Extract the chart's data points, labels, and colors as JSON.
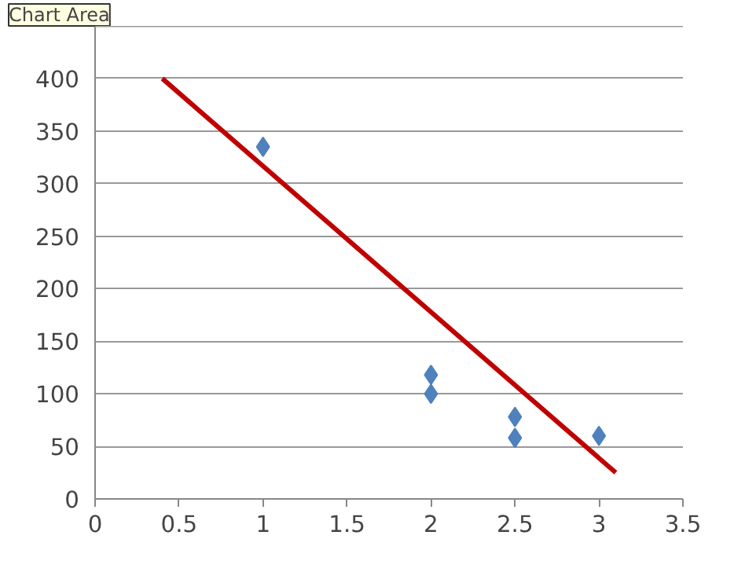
{
  "chart_data": {
    "type": "scatter",
    "marker": "diamond",
    "grid": "y",
    "xlim": [
      0,
      3.5
    ],
    "xticks": [
      0,
      0.5,
      1,
      1.5,
      2,
      2.5,
      3,
      3.5
    ],
    "ylim": [
      0,
      450
    ],
    "yticks": [
      0,
      50,
      100,
      150,
      200,
      250,
      300,
      350,
      400,
      {
        "value": 450,
        "label": null
      }
    ],
    "annotations": [
      "Chart Area"
    ],
    "series": [
      {
        "color": "#4f81bd",
        "x": [
          1,
          2,
          2,
          2.5,
          2.5,
          3
        ],
        "values": [
          335,
          118,
          100,
          78,
          58,
          60
        ]
      },
      {
        "type": "line",
        "color": "#c00000",
        "x": [
          0.4,
          3.1
        ],
        "values": [
          400,
          25
        ],
        "marker": "none",
        "line_style": "solid"
      }
    ]
  }
}
